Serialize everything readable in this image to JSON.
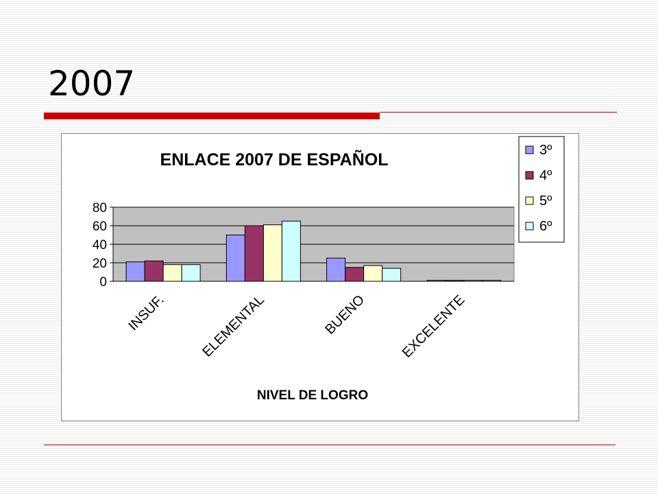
{
  "slide": {
    "title": "2007"
  },
  "chart_data": {
    "type": "bar",
    "title": "ENLACE 2007 DE ESPAÑOL",
    "xlabel": "NIVEL DE LOGRO",
    "ylabel": "",
    "categories": [
      "INSUF.",
      "ELEMENTAL",
      "BUENO",
      "EXCELENTE"
    ],
    "series": [
      {
        "name": "3º",
        "values": [
          21,
          50,
          25,
          1
        ],
        "color": "#9999ff"
      },
      {
        "name": "4º",
        "values": [
          22,
          60,
          15,
          1
        ],
        "color": "#993366"
      },
      {
        "name": "5º",
        "values": [
          18,
          61,
          17,
          1
        ],
        "color": "#ffffcc"
      },
      {
        "name": "6º",
        "values": [
          18,
          65,
          14,
          1
        ],
        "color": "#ccffff"
      }
    ],
    "ylim": [
      0,
      80
    ],
    "yticks": [
      0,
      20,
      40,
      60,
      80
    ],
    "grid": true,
    "legend": "top-right",
    "plot_background": "#c0c0c0"
  }
}
